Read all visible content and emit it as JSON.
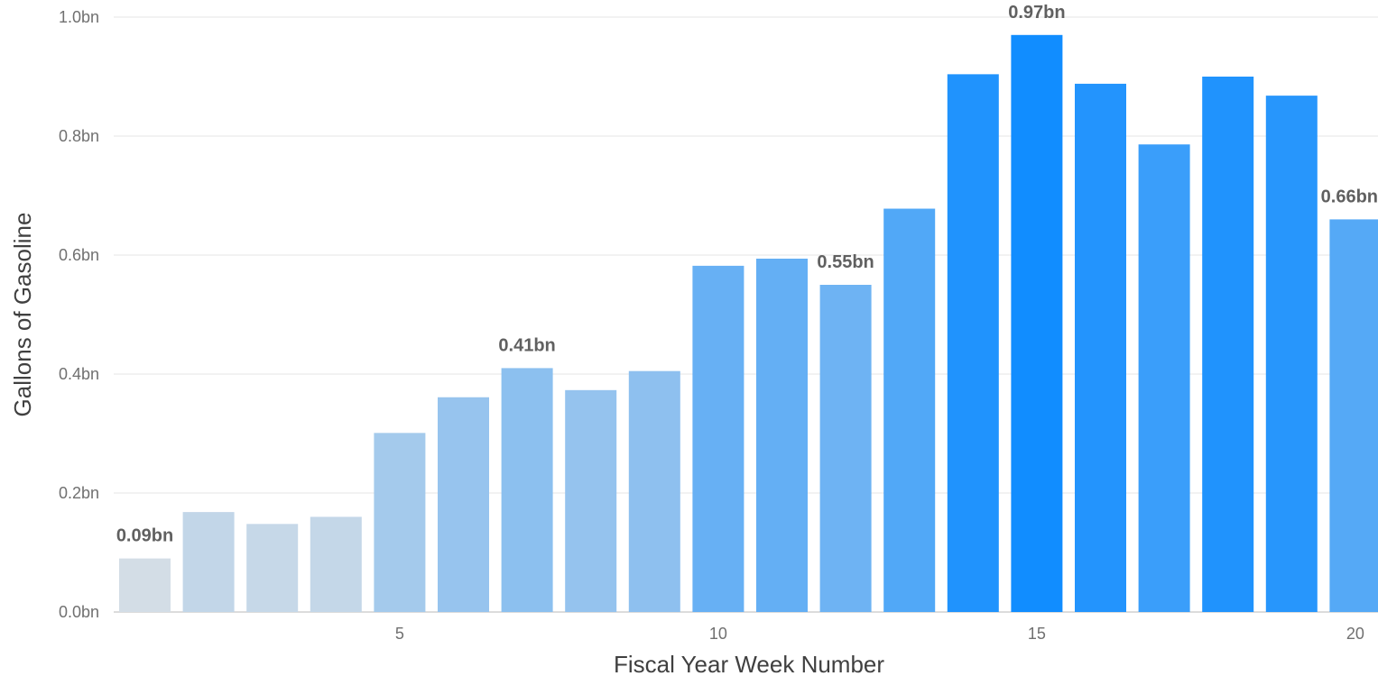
{
  "chart_data": {
    "type": "bar",
    "xlabel": "Fiscal Year Week Number",
    "ylabel": "Gallons of Gasoline",
    "x": [
      1,
      2,
      3,
      4,
      5,
      6,
      7,
      8,
      9,
      10,
      11,
      12,
      13,
      14,
      15,
      16,
      17,
      18,
      19,
      20
    ],
    "values": [
      0.09,
      0.168,
      0.148,
      0.16,
      0.301,
      0.361,
      0.41,
      0.373,
      0.405,
      0.582,
      0.594,
      0.55,
      0.678,
      0.904,
      0.97,
      0.888,
      0.786,
      0.9,
      0.868,
      0.66
    ],
    "ylim": [
      0,
      1.0
    ],
    "yticks": [
      0.0,
      0.2,
      0.4,
      0.6,
      0.8,
      1.0
    ],
    "ytick_labels": [
      "0.0bn",
      "0.2bn",
      "0.4bn",
      "0.6bn",
      "0.8bn",
      "1.0bn"
    ],
    "xticks": [
      5,
      10,
      15,
      20
    ],
    "xtick_labels": [
      "5",
      "10",
      "15",
      "20"
    ],
    "data_labels": [
      {
        "x": 1,
        "text": "0.09bn"
      },
      {
        "x": 7,
        "text": "0.41bn"
      },
      {
        "x": 12,
        "text": "0.55bn"
      },
      {
        "x": 15,
        "text": "0.97bn"
      },
      {
        "x": 20,
        "text": "0.66bn"
      }
    ],
    "color_scale": {
      "low": "#d3dde6",
      "high": "#118dff"
    },
    "grid": true,
    "legend": "none"
  }
}
